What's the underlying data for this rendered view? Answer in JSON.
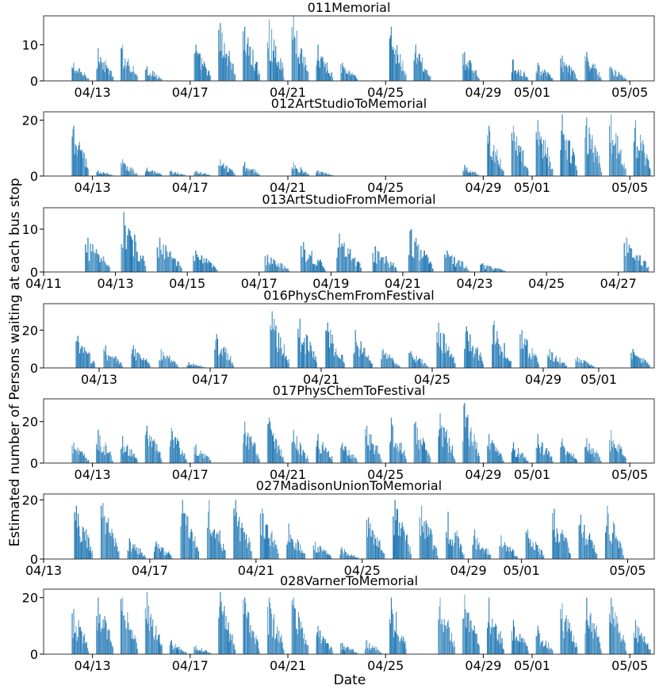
{
  "figure": {
    "ylabel": "Estimated number of Persons waiting at each bus stop",
    "xlabel": "Date",
    "bar_color": "#1f77b4"
  },
  "chart_data": [
    {
      "type": "bar",
      "title": "011Memorial",
      "xlim": [
        "04/11",
        "05/06"
      ],
      "ylim": [
        0,
        18
      ],
      "yticks": [
        0,
        10
      ],
      "xticks": [
        {
          "label": "04/13",
          "date": "04/13"
        },
        {
          "label": "04/17",
          "date": "04/17"
        },
        {
          "label": "04/21",
          "date": "04/21"
        },
        {
          "label": "04/25",
          "date": "04/25"
        },
        {
          "label": "04/29",
          "date": "04/29"
        },
        {
          "label": "05/01",
          "date": "05/01"
        },
        {
          "label": "05/05",
          "date": "05/05"
        }
      ],
      "bursts": [
        {
          "date": "04/12",
          "peak": 5
        },
        {
          "date": "04/13",
          "peak": 9
        },
        {
          "date": "04/14",
          "peak": 10
        },
        {
          "date": "04/15",
          "peak": 4
        },
        {
          "date": "04/17",
          "peak": 10
        },
        {
          "date": "04/18",
          "peak": 16
        },
        {
          "date": "04/19",
          "peak": 15
        },
        {
          "date": "04/20",
          "peak": 17
        },
        {
          "date": "04/21",
          "peak": 18
        },
        {
          "date": "04/22",
          "peak": 10
        },
        {
          "date": "04/23",
          "peak": 5
        },
        {
          "date": "04/25",
          "peak": 15
        },
        {
          "date": "04/26",
          "peak": 10
        },
        {
          "date": "04/28",
          "peak": 8
        },
        {
          "date": "04/30",
          "peak": 6
        },
        {
          "date": "05/01",
          "peak": 5
        },
        {
          "date": "05/02",
          "peak": 7
        },
        {
          "date": "05/03",
          "peak": 8
        },
        {
          "date": "05/04",
          "peak": 4
        }
      ]
    },
    {
      "type": "bar",
      "title": "012ArtStudioToMemorial",
      "xlim": [
        "04/11",
        "05/06"
      ],
      "ylim": [
        0,
        23
      ],
      "yticks": [
        0,
        20
      ],
      "xticks": [
        {
          "label": "04/13",
          "date": "04/13"
        },
        {
          "label": "04/17",
          "date": "04/17"
        },
        {
          "label": "04/21",
          "date": "04/21"
        },
        {
          "label": "04/25",
          "date": "04/25"
        },
        {
          "label": "04/29",
          "date": "04/29"
        },
        {
          "label": "05/01",
          "date": "05/01"
        },
        {
          "label": "05/05",
          "date": "05/05"
        }
      ],
      "bursts": [
        {
          "date": "04/12",
          "peak": 18
        },
        {
          "date": "04/13",
          "peak": 2
        },
        {
          "date": "04/14",
          "peak": 6
        },
        {
          "date": "04/15",
          "peak": 3
        },
        {
          "date": "04/16",
          "peak": 2
        },
        {
          "date": "04/17",
          "peak": 2
        },
        {
          "date": "04/18",
          "peak": 6
        },
        {
          "date": "04/19",
          "peak": 5
        },
        {
          "date": "04/21",
          "peak": 5
        },
        {
          "date": "04/22",
          "peak": 2
        },
        {
          "date": "04/28",
          "peak": 4
        },
        {
          "date": "04/29",
          "peak": 18
        },
        {
          "date": "04/30",
          "peak": 18
        },
        {
          "date": "05/01",
          "peak": 20
        },
        {
          "date": "05/02",
          "peak": 22
        },
        {
          "date": "05/03",
          "peak": 21
        },
        {
          "date": "05/04",
          "peak": 22
        },
        {
          "date": "05/05",
          "peak": 20
        }
      ]
    },
    {
      "type": "bar",
      "title": "013ArtStudioFromMemorial",
      "xlim": [
        "04/11",
        "04/28"
      ],
      "ylim": [
        0,
        15
      ],
      "yticks": [
        0,
        10
      ],
      "xticks": [
        {
          "label": "04/11",
          "date": "04/11"
        },
        {
          "label": "04/13",
          "date": "04/13"
        },
        {
          "label": "04/15",
          "date": "04/15"
        },
        {
          "label": "04/17",
          "date": "04/17"
        },
        {
          "label": "04/19",
          "date": "04/19"
        },
        {
          "label": "04/21",
          "date": "04/21"
        },
        {
          "label": "04/23",
          "date": "04/23"
        },
        {
          "label": "04/25",
          "date": "04/25"
        },
        {
          "label": "04/27",
          "date": "04/27"
        }
      ],
      "bursts": [
        {
          "date": "04/12",
          "peak": 8
        },
        {
          "date": "04/13",
          "peak": 14
        },
        {
          "date": "04/14",
          "peak": 8
        },
        {
          "date": "04/15",
          "peak": 5
        },
        {
          "date": "04/17",
          "peak": 4
        },
        {
          "date": "04/18",
          "peak": 7
        },
        {
          "date": "04/19",
          "peak": 9
        },
        {
          "date": "04/20",
          "peak": 6
        },
        {
          "date": "04/21",
          "peak": 10
        },
        {
          "date": "04/22",
          "peak": 5
        },
        {
          "date": "04/23",
          "peak": 2
        },
        {
          "date": "04/27",
          "peak": 8
        }
      ]
    },
    {
      "type": "bar",
      "title": "016PhysChemFromFestival",
      "xlim": [
        "04/11",
        "05/03"
      ],
      "ylim": [
        0,
        34
      ],
      "yticks": [
        0,
        20
      ],
      "xticks": [
        {
          "label": "04/13",
          "date": "04/13"
        },
        {
          "label": "04/17",
          "date": "04/17"
        },
        {
          "label": "04/21",
          "date": "04/21"
        },
        {
          "label": "04/25",
          "date": "04/25"
        },
        {
          "label": "04/29",
          "date": "04/29"
        },
        {
          "label": "05/01",
          "date": "05/01"
        }
      ],
      "bursts": [
        {
          "date": "04/12",
          "peak": 17
        },
        {
          "date": "04/13",
          "peak": 12
        },
        {
          "date": "04/14",
          "peak": 12
        },
        {
          "date": "04/15",
          "peak": 10
        },
        {
          "date": "04/16",
          "peak": 3
        },
        {
          "date": "04/17",
          "peak": 18
        },
        {
          "date": "04/19",
          "peak": 30
        },
        {
          "date": "04/20",
          "peak": 26
        },
        {
          "date": "04/21",
          "peak": 24
        },
        {
          "date": "04/22",
          "peak": 20
        },
        {
          "date": "04/23",
          "peak": 10
        },
        {
          "date": "04/24",
          "peak": 9
        },
        {
          "date": "04/25",
          "peak": 24
        },
        {
          "date": "04/26",
          "peak": 22
        },
        {
          "date": "04/27",
          "peak": 25
        },
        {
          "date": "04/28",
          "peak": 20
        },
        {
          "date": "04/29",
          "peak": 10
        },
        {
          "date": "04/30",
          "peak": 6
        },
        {
          "date": "05/02",
          "peak": 10
        }
      ]
    },
    {
      "type": "bar",
      "title": "017PhysChemToFestival",
      "xlim": [
        "04/11",
        "05/06"
      ],
      "ylim": [
        0,
        31
      ],
      "yticks": [
        0,
        20
      ],
      "xticks": [
        {
          "label": "04/13",
          "date": "04/13"
        },
        {
          "label": "04/17",
          "date": "04/17"
        },
        {
          "label": "04/21",
          "date": "04/21"
        },
        {
          "label": "04/25",
          "date": "04/25"
        },
        {
          "label": "04/29",
          "date": "04/29"
        },
        {
          "label": "05/01",
          "date": "05/01"
        },
        {
          "label": "05/05",
          "date": "05/05"
        }
      ],
      "bursts": [
        {
          "date": "04/12",
          "peak": 10
        },
        {
          "date": "04/13",
          "peak": 16
        },
        {
          "date": "04/14",
          "peak": 13
        },
        {
          "date": "04/15",
          "peak": 18
        },
        {
          "date": "04/16",
          "peak": 17
        },
        {
          "date": "04/17",
          "peak": 9
        },
        {
          "date": "04/19",
          "peak": 20
        },
        {
          "date": "04/20",
          "peak": 22
        },
        {
          "date": "04/21",
          "peak": 16
        },
        {
          "date": "04/22",
          "peak": 14
        },
        {
          "date": "04/23",
          "peak": 10
        },
        {
          "date": "04/24",
          "peak": 18
        },
        {
          "date": "04/25",
          "peak": 22
        },
        {
          "date": "04/26",
          "peak": 20
        },
        {
          "date": "04/27",
          "peak": 24
        },
        {
          "date": "04/28",
          "peak": 29
        },
        {
          "date": "04/29",
          "peak": 14
        },
        {
          "date": "04/30",
          "peak": 10
        },
        {
          "date": "05/01",
          "peak": 14
        },
        {
          "date": "05/02",
          "peak": 12
        },
        {
          "date": "05/03",
          "peak": 12
        },
        {
          "date": "05/04",
          "peak": 16
        }
      ]
    },
    {
      "type": "bar",
      "title": "027MadisonUnionToMemorial",
      "xlim": [
        "04/13",
        "05/06"
      ],
      "ylim": [
        0,
        22
      ],
      "yticks": [
        0,
        20
      ],
      "xticks": [
        {
          "label": "04/13",
          "date": "04/13"
        },
        {
          "label": "04/17",
          "date": "04/17"
        },
        {
          "label": "04/21",
          "date": "04/21"
        },
        {
          "label": "04/25",
          "date": "04/25"
        },
        {
          "label": "04/29",
          "date": "04/29"
        },
        {
          "label": "05/01",
          "date": "05/01"
        },
        {
          "label": "05/05",
          "date": "05/05"
        }
      ],
      "bursts": [
        {
          "date": "04/14",
          "peak": 18
        },
        {
          "date": "04/15",
          "peak": 19
        },
        {
          "date": "04/16",
          "peak": 7
        },
        {
          "date": "04/17",
          "peak": 6
        },
        {
          "date": "04/18",
          "peak": 20
        },
        {
          "date": "04/19",
          "peak": 20
        },
        {
          "date": "04/20",
          "peak": 20
        },
        {
          "date": "04/21",
          "peak": 17
        },
        {
          "date": "04/22",
          "peak": 12
        },
        {
          "date": "04/23",
          "peak": 6
        },
        {
          "date": "04/24",
          "peak": 4
        },
        {
          "date": "04/25",
          "peak": 14
        },
        {
          "date": "04/26",
          "peak": 20
        },
        {
          "date": "04/27",
          "peak": 18
        },
        {
          "date": "04/28",
          "peak": 16
        },
        {
          "date": "04/29",
          "peak": 10
        },
        {
          "date": "04/30",
          "peak": 8
        },
        {
          "date": "05/01",
          "peak": 10
        },
        {
          "date": "05/02",
          "peak": 17
        },
        {
          "date": "05/03",
          "peak": 15
        },
        {
          "date": "05/04",
          "peak": 18
        }
      ]
    },
    {
      "type": "bar",
      "title": "028VarnerToMemorial",
      "xlim": [
        "04/11",
        "05/06"
      ],
      "ylim": [
        0,
        23
      ],
      "yticks": [
        0,
        20
      ],
      "xticks": [
        {
          "label": "04/13",
          "date": "04/13"
        },
        {
          "label": "04/17",
          "date": "04/17"
        },
        {
          "label": "04/21",
          "date": "04/21"
        },
        {
          "label": "04/25",
          "date": "04/25"
        },
        {
          "label": "04/29",
          "date": "04/29"
        },
        {
          "label": "05/01",
          "date": "05/01"
        },
        {
          "label": "05/05",
          "date": "05/05"
        }
      ],
      "bursts": [
        {
          "date": "04/12",
          "peak": 16
        },
        {
          "date": "04/13",
          "peak": 20
        },
        {
          "date": "04/14",
          "peak": 20
        },
        {
          "date": "04/15",
          "peak": 22
        },
        {
          "date": "04/16",
          "peak": 5
        },
        {
          "date": "04/17",
          "peak": 3
        },
        {
          "date": "04/18",
          "peak": 22
        },
        {
          "date": "04/19",
          "peak": 20
        },
        {
          "date": "04/20",
          "peak": 20
        },
        {
          "date": "04/21",
          "peak": 20
        },
        {
          "date": "04/22",
          "peak": 10
        },
        {
          "date": "04/23",
          "peak": 4
        },
        {
          "date": "04/24",
          "peak": 5
        },
        {
          "date": "04/25",
          "peak": 20
        },
        {
          "date": "04/27",
          "peak": 20
        },
        {
          "date": "04/28",
          "peak": 21
        },
        {
          "date": "04/29",
          "peak": 20
        },
        {
          "date": "04/30",
          "peak": 12
        },
        {
          "date": "05/01",
          "peak": 10
        },
        {
          "date": "05/02",
          "peak": 18
        },
        {
          "date": "05/03",
          "peak": 20
        },
        {
          "date": "05/04",
          "peak": 20
        },
        {
          "date": "05/05",
          "peak": 12
        }
      ]
    }
  ]
}
